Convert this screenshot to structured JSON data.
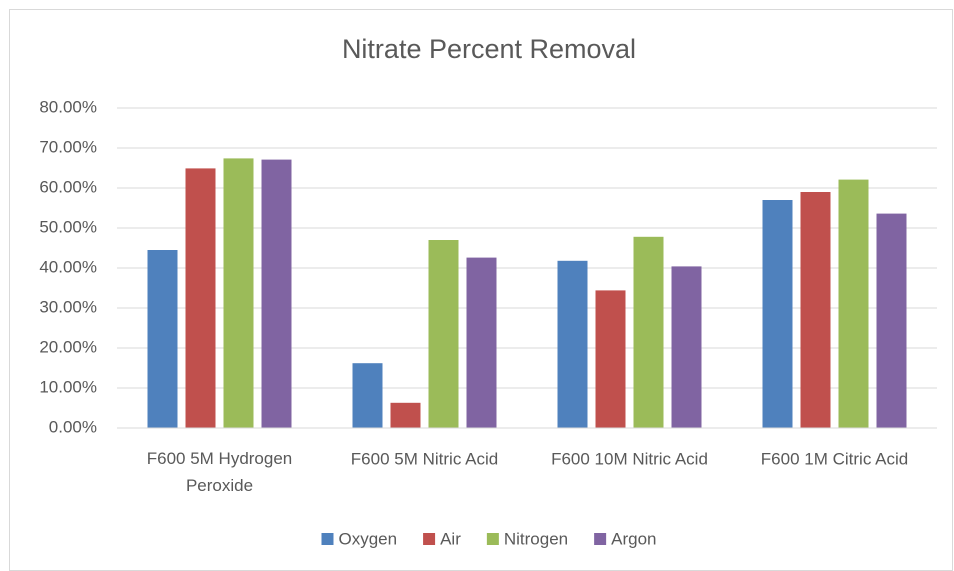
{
  "chart_data": {
    "type": "bar",
    "title": "Nitrate Percent Removal",
    "categories": [
      "F600 5M Hydrogen Peroxide",
      "F600 5M Nitric Acid",
      "F600 10M Nitric Acid",
      "F600 1M Citric Acid"
    ],
    "series": [
      {
        "name": "Oxygen",
        "color": "#4f81bd",
        "values": [
          44.5,
          16.2,
          41.8,
          57.0
        ]
      },
      {
        "name": "Air",
        "color": "#c0504d",
        "values": [
          64.9,
          6.3,
          34.4,
          59.0
        ]
      },
      {
        "name": "Nitrogen",
        "color": "#9bbb59",
        "values": [
          67.4,
          47.0,
          47.8,
          62.1
        ]
      },
      {
        "name": "Argon",
        "color": "#8064a2",
        "values": [
          67.1,
          42.6,
          40.4,
          53.6
        ]
      }
    ],
    "ylim": [
      0,
      80
    ],
    "yticks": [
      {
        "value": 0,
        "label": "0.00%"
      },
      {
        "value": 10,
        "label": "10.00%"
      },
      {
        "value": 20,
        "label": "20.00%"
      },
      {
        "value": 30,
        "label": "30.00%"
      },
      {
        "value": 40,
        "label": "40.00%"
      },
      {
        "value": 50,
        "label": "50.00%"
      },
      {
        "value": 60,
        "label": "60.00%"
      },
      {
        "value": 70,
        "label": "70.00%"
      },
      {
        "value": 80,
        "label": "80.00%"
      }
    ],
    "grid": true,
    "legend": "bottom"
  }
}
